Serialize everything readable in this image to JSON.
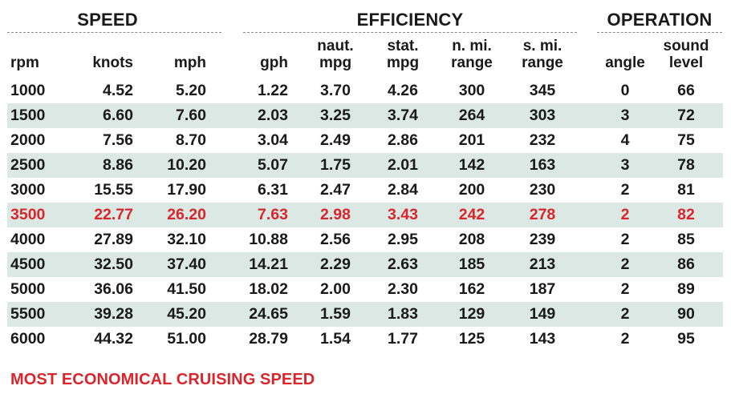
{
  "groups": {
    "speed": "SPEED",
    "efficiency": "EFFICIENCY",
    "operation": "OPERATION"
  },
  "columns": [
    {
      "key": "rpm",
      "line1": "",
      "line2": "rpm"
    },
    {
      "key": "knots",
      "line1": "",
      "line2": "knots"
    },
    {
      "key": "mph",
      "line1": "",
      "line2": "mph"
    },
    {
      "key": "gph",
      "line1": "",
      "line2": "gph"
    },
    {
      "key": "naut_mpg",
      "line1": "naut.",
      "line2": "mpg"
    },
    {
      "key": "stat_mpg",
      "line1": "stat.",
      "line2": "mpg"
    },
    {
      "key": "n_mi_range",
      "line1": "n. mi.",
      "line2": "range"
    },
    {
      "key": "s_mi_range",
      "line1": "s. mi.",
      "line2": "range"
    },
    {
      "key": "angle",
      "line1": "",
      "line2": "angle"
    },
    {
      "key": "sound_level",
      "line1": "sound",
      "line2": "level"
    }
  ],
  "rows": [
    [
      "1000",
      "4.52",
      "5.20",
      "1.22",
      "3.70",
      "4.26",
      "300",
      "345",
      "0",
      "66"
    ],
    [
      "1500",
      "6.60",
      "7.60",
      "2.03",
      "3.25",
      "3.74",
      "264",
      "303",
      "3",
      "72"
    ],
    [
      "2000",
      "7.56",
      "8.70",
      "3.04",
      "2.49",
      "2.86",
      "201",
      "232",
      "4",
      "75"
    ],
    [
      "2500",
      "8.86",
      "10.20",
      "5.07",
      "1.75",
      "2.01",
      "142",
      "163",
      "3",
      "78"
    ],
    [
      "3000",
      "15.55",
      "17.90",
      "6.31",
      "2.47",
      "2.84",
      "200",
      "230",
      "2",
      "81"
    ],
    [
      "3500",
      "22.77",
      "26.20",
      "7.63",
      "2.98",
      "3.43",
      "242",
      "278",
      "2",
      "82"
    ],
    [
      "4000",
      "27.89",
      "32.10",
      "10.88",
      "2.56",
      "2.95",
      "208",
      "239",
      "2",
      "85"
    ],
    [
      "4500",
      "32.50",
      "37.40",
      "14.21",
      "2.29",
      "2.63",
      "185",
      "213",
      "2",
      "86"
    ],
    [
      "5000",
      "36.06",
      "41.50",
      "18.02",
      "2.00",
      "2.30",
      "162",
      "187",
      "2",
      "89"
    ],
    [
      "5500",
      "39.28",
      "45.20",
      "24.65",
      "1.59",
      "1.83",
      "129",
      "149",
      "2",
      "90"
    ],
    [
      "6000",
      "44.32",
      "51.00",
      "28.79",
      "1.54",
      "1.77",
      "125",
      "143",
      "2",
      "95"
    ]
  ],
  "highlight_row_index": 5,
  "colors": {
    "highlight": "#d9262c",
    "row_shade": "#dbe8e4",
    "text": "#1a1a1a",
    "rule": "#8a8a8a"
  },
  "footnote": "MOST ECONOMICAL CRUISING SPEED"
}
